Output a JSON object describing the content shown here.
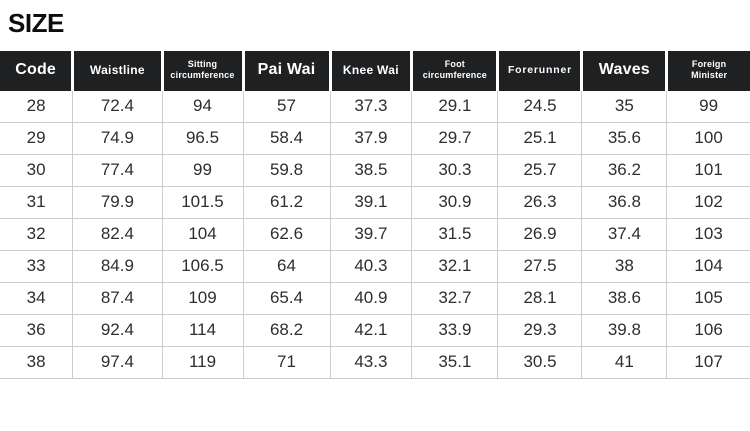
{
  "page": {
    "title": "SIZE"
  },
  "table": {
    "columns": [
      {
        "label": "Code",
        "size": "lg"
      },
      {
        "label": "Waistline",
        "size": "md"
      },
      {
        "label": "Sitting\ncircumference",
        "size": "sm"
      },
      {
        "label": "Pai Wai",
        "size": "lg"
      },
      {
        "label": "Knee Wai",
        "size": "md"
      },
      {
        "label": "Foot\ncircumference",
        "size": "sm"
      },
      {
        "label": "Forerunner",
        "size": "spaced"
      },
      {
        "label": "Waves",
        "size": "lg"
      },
      {
        "label": "Foreign\nMinister",
        "size": "sm"
      }
    ],
    "rows": [
      [
        "28",
        "72.4",
        "94",
        "57",
        "37.3",
        "29.1",
        "24.5",
        "35",
        "99"
      ],
      [
        "29",
        "74.9",
        "96.5",
        "58.4",
        "37.9",
        "29.7",
        "25.1",
        "35.6",
        "100"
      ],
      [
        "30",
        "77.4",
        "99",
        "59.8",
        "38.5",
        "30.3",
        "25.7",
        "36.2",
        "101"
      ],
      [
        "31",
        "79.9",
        "101.5",
        "61.2",
        "39.1",
        "30.9",
        "26.3",
        "36.8",
        "102"
      ],
      [
        "32",
        "82.4",
        "104",
        "62.6",
        "39.7",
        "31.5",
        "26.9",
        "37.4",
        "103"
      ],
      [
        "33",
        "84.9",
        "106.5",
        "64",
        "40.3",
        "32.1",
        "27.5",
        "38",
        "104"
      ],
      [
        "34",
        "87.4",
        "109",
        "65.4",
        "40.9",
        "32.7",
        "28.1",
        "38.6",
        "105"
      ],
      [
        "36",
        "92.4",
        "114",
        "68.2",
        "42.1",
        "33.9",
        "29.3",
        "39.8",
        "106"
      ],
      [
        "38",
        "97.4",
        "119",
        "71",
        "43.3",
        "35.1",
        "30.5",
        "41",
        "107"
      ]
    ]
  },
  "colors": {
    "header_bg": "#1f2022",
    "header_text": "#ffffff",
    "body_border": "#cccccc",
    "body_text": "#2e2e2e",
    "title_text": "#0d0d0d"
  }
}
